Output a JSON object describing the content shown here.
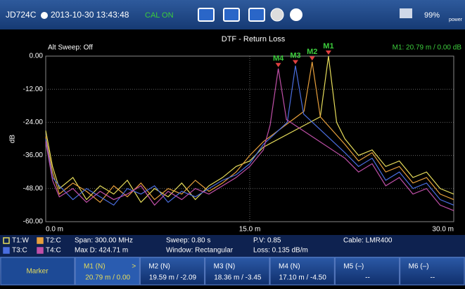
{
  "header": {
    "device": "JD724C",
    "datetime": "2013-10-30 13:43:48",
    "cal": "CAL ON",
    "battery": "99%",
    "power": "power"
  },
  "chart_data": {
    "type": "line",
    "title": "DTF - Return Loss",
    "subtitle": "Alt Sweep: Off",
    "marker_readout": "M1: 20.79 m / 0.00 dB",
    "y_label": "dB",
    "xlim": [
      0,
      30
    ],
    "ylim": [
      -60,
      0
    ],
    "grid": true,
    "xticks": [
      {
        "value": 0,
        "label": "0.0 m"
      },
      {
        "value": 15,
        "label": "15.0 m"
      },
      {
        "value": 30,
        "label": "30.0 m"
      }
    ],
    "yticks": [
      {
        "value": 0,
        "label": "0.00"
      },
      {
        "value": -12,
        "label": "-12.00"
      },
      {
        "value": -24,
        "label": "-24.00"
      },
      {
        "value": -36,
        "label": "-36.00"
      },
      {
        "value": -48,
        "label": "-48.00"
      },
      {
        "value": -60,
        "label": "-60.00"
      }
    ],
    "series": [
      {
        "name": "T1:W",
        "color": "#e6dc5a",
        "x": [
          0,
          0.5,
          1,
          2,
          3,
          4,
          5,
          6,
          7,
          8,
          9,
          10,
          11,
          12,
          13,
          14,
          15,
          16,
          20.19,
          20.79,
          21.39,
          22,
          23,
          24,
          25,
          26,
          27,
          28,
          29,
          30
        ],
        "values": [
          -27,
          -40,
          -48,
          -44,
          -52,
          -47,
          -50,
          -45,
          -53,
          -48,
          -51,
          -46,
          -52,
          -47,
          -44,
          -40,
          -38,
          -33,
          -22,
          0,
          -24,
          -30,
          -36,
          -34,
          -40,
          -38,
          -44,
          -42,
          -48,
          -50
        ]
      },
      {
        "name": "T2:C",
        "color": "#e8a03c",
        "x": [
          0,
          0.5,
          1,
          2,
          3,
          4,
          5,
          6,
          7,
          8,
          9,
          10,
          11,
          12,
          13,
          14,
          15,
          16,
          18.99,
          19.59,
          20.19,
          22,
          23,
          24,
          25,
          26,
          27,
          28,
          29,
          30
        ],
        "values": [
          -29,
          -42,
          -50,
          -46,
          -49,
          -53,
          -47,
          -51,
          -46,
          -52,
          -48,
          -50,
          -45,
          -49,
          -46,
          -42,
          -36,
          -31,
          -20,
          -2.09,
          -22,
          -32,
          -38,
          -35,
          -42,
          -40,
          -46,
          -44,
          -50,
          -52
        ]
      },
      {
        "name": "T3:C",
        "color": "#4a6ee0",
        "x": [
          0,
          0.5,
          1,
          2,
          3,
          4,
          5,
          6,
          7,
          8,
          9,
          10,
          11,
          12,
          13,
          14,
          15,
          16,
          17.76,
          18.36,
          18.96,
          22,
          23,
          24,
          25,
          26,
          27,
          28,
          29,
          30
        ],
        "values": [
          -30,
          -44,
          -47,
          -52,
          -48,
          -51,
          -54,
          -48,
          -50,
          -47,
          -53,
          -49,
          -51,
          -48,
          -45,
          -43,
          -39,
          -32,
          -24,
          -3.45,
          -21,
          -35,
          -40,
          -37,
          -45,
          -42,
          -48,
          -46,
          -52,
          -54
        ]
      },
      {
        "name": "T4:C",
        "color": "#c050a8",
        "x": [
          0,
          0.5,
          1,
          2,
          3,
          4,
          5,
          6,
          7,
          8,
          9,
          10,
          11,
          12,
          13,
          14,
          15,
          16,
          16.5,
          17.1,
          17.7,
          22,
          23,
          24,
          25,
          26,
          27,
          28,
          29,
          30
        ],
        "values": [
          -31,
          -45,
          -51,
          -48,
          -53,
          -49,
          -52,
          -50,
          -47,
          -54,
          -49,
          -52,
          -48,
          -50,
          -47,
          -44,
          -40,
          -34,
          -25,
          -4.5,
          -23,
          -37,
          -42,
          -39,
          -47,
          -44,
          -50,
          -48,
          -54,
          -56
        ]
      }
    ],
    "markers": [
      {
        "label": "M1",
        "x": 20.79,
        "y": 0
      },
      {
        "label": "M2",
        "x": 19.59,
        "y": -2.09
      },
      {
        "label": "M3",
        "x": 18.36,
        "y": -3.45
      },
      {
        "label": "M4",
        "x": 17.1,
        "y": -4.5
      }
    ]
  },
  "info": {
    "span": "Span: 300.00 MHz",
    "maxd": "Max D: 424.71 m",
    "sweep": "Sweep: 0.80 s",
    "window": "Window: Rectangular",
    "pv": "P.V: 0.85",
    "loss": "Loss: 0.135 dB/m",
    "cable": "Cable: LMR400"
  },
  "softkeys": {
    "menu": "Marker",
    "arrow": ">",
    "keys": [
      {
        "title": "M1 (N)",
        "value": "20.79 m / 0.00"
      },
      {
        "title": "M2 (N)",
        "value": "19.59 m / -2.09"
      },
      {
        "title": "M3 (N)",
        "value": "18.36 m / -3.45"
      },
      {
        "title": "M4 (N)",
        "value": "17.10 m / -4.50"
      },
      {
        "title": "M5 (–)",
        "value": "--"
      },
      {
        "title": "M6 (–)",
        "value": "--"
      }
    ]
  }
}
